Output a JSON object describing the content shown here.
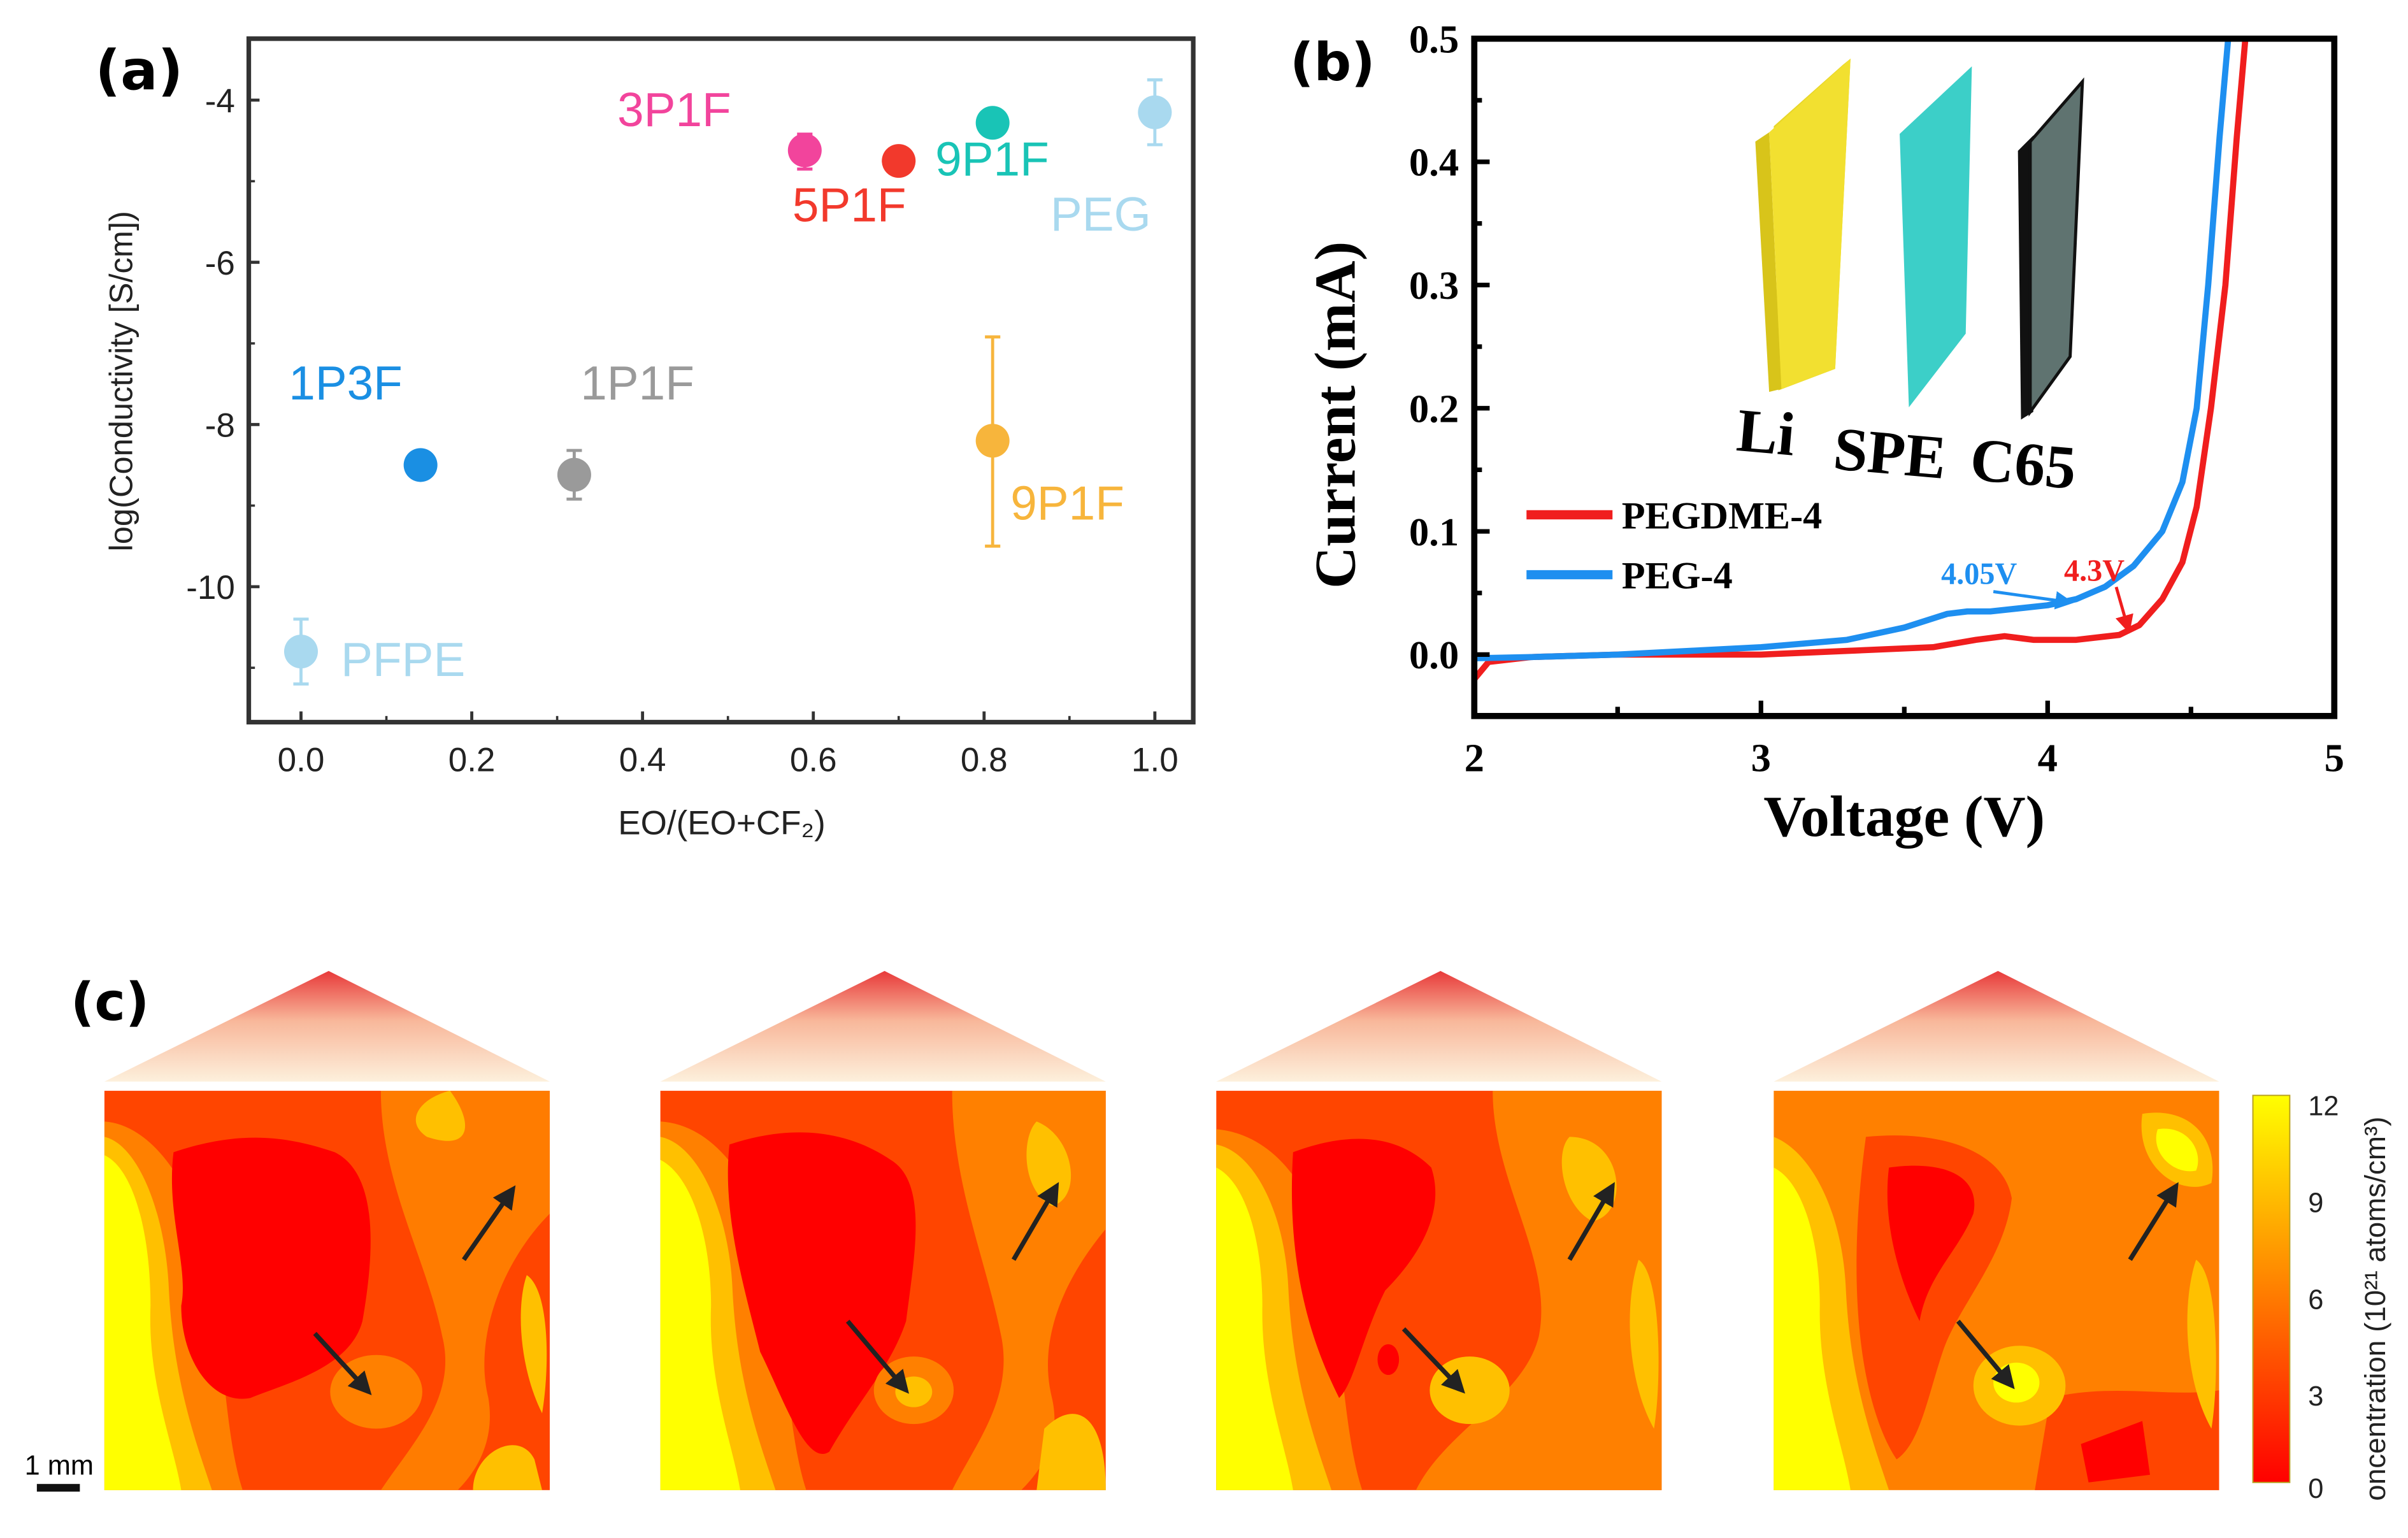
{
  "panel_labels": {
    "a": "(a)",
    "b": "(b)",
    "c": "(c)"
  },
  "chart_data": [
    {
      "type": "scatter",
      "panel": "(a)",
      "xlabel": "EO/(EO+CF₂)",
      "ylabel": "log(Conductivity [S/cm])",
      "xlim": [
        -0.05,
        1.05
      ],
      "ylim": [
        -11.7,
        -3.25
      ],
      "xticks": [
        "0.0",
        "0.2",
        "0.4",
        "0.6",
        "0.8",
        "1.0"
      ],
      "xtick_values": [
        0,
        0.2,
        0.4,
        0.6,
        0.8,
        1.0
      ],
      "yticks": [
        "-4",
        "-6",
        "-8",
        "-10"
      ],
      "ytick_values": [
        -4,
        -6,
        -8,
        -10
      ],
      "grid": false,
      "points": [
        {
          "label": "PFPE",
          "x": 0.0,
          "y": -10.8,
          "err_low": -11.2,
          "err_high": -10.4,
          "color": "#a9d9ef"
        },
        {
          "label": "1P3F",
          "x": 0.14,
          "y": -8.5,
          "err_low": -8.5,
          "err_high": -8.5,
          "color": "#1a8fe3"
        },
        {
          "label": "1P1F",
          "x": 0.32,
          "y": -8.62,
          "err_low": -8.92,
          "err_high": -8.32,
          "color": "#9a9a9a"
        },
        {
          "label": "3P1F",
          "x": 0.59,
          "y": -4.62,
          "err_low": -4.85,
          "err_high": -4.42,
          "color": "#f2449c"
        },
        {
          "label": "5P1F",
          "x": 0.7,
          "y": -4.75,
          "err_low": -4.75,
          "err_high": -4.75,
          "color": "#f2392c"
        },
        {
          "label": "9P1F",
          "x": 0.81,
          "y": -4.28,
          "err_low": -4.28,
          "err_high": -4.28,
          "color": "#19c4b6"
        },
        {
          "label": "9P1F",
          "x": 0.81,
          "y": -8.2,
          "err_low": -9.5,
          "err_high": -6.92,
          "color": "#f7b53c"
        },
        {
          "label": "PEG",
          "x": 1.0,
          "y": -4.15,
          "err_low": -4.55,
          "err_high": -3.75,
          "color": "#a9d9ef"
        }
      ]
    },
    {
      "type": "line",
      "panel": "(b)",
      "xlabel": "Voltage (V)",
      "ylabel": "Current (mA)",
      "xlim": [
        2,
        5
      ],
      "ylim": [
        -0.05,
        0.5
      ],
      "xticks": [
        "2",
        "3",
        "4",
        "5"
      ],
      "xtick_values": [
        2,
        3,
        4,
        5
      ],
      "yticks": [
        "0.0",
        "0.1",
        "0.2",
        "0.3",
        "0.4",
        "0.5"
      ],
      "ytick_values": [
        0,
        0.1,
        0.2,
        0.3,
        0.4,
        0.5
      ],
      "legend_position": "middle-left",
      "series": [
        {
          "name": "PEGDME-4",
          "color": "#f01e1e",
          "x": [
            2.0,
            2.05,
            2.2,
            2.5,
            3.0,
            3.4,
            3.6,
            3.75,
            3.85,
            3.95,
            4.1,
            4.25,
            4.32,
            4.4,
            4.47,
            4.52,
            4.57,
            4.62,
            4.66,
            4.69
          ],
          "y": [
            -0.02,
            -0.006,
            -0.002,
            0.0,
            0.0,
            0.004,
            0.006,
            0.012,
            0.015,
            0.012,
            0.012,
            0.016,
            0.024,
            0.045,
            0.075,
            0.12,
            0.2,
            0.3,
            0.42,
            0.5
          ]
        },
        {
          "name": "PEG-4",
          "color": "#1e8ff0",
          "x": [
            2.0,
            2.2,
            2.5,
            3.0,
            3.3,
            3.5,
            3.65,
            3.72,
            3.8,
            4.0,
            4.1,
            4.2,
            4.3,
            4.4,
            4.47,
            4.52,
            4.56,
            4.6,
            4.63
          ],
          "y": [
            -0.003,
            -0.002,
            0.0,
            0.006,
            0.012,
            0.022,
            0.033,
            0.035,
            0.035,
            0.04,
            0.045,
            0.055,
            0.072,
            0.1,
            0.14,
            0.2,
            0.3,
            0.42,
            0.5
          ]
        }
      ],
      "annotations": [
        {
          "text": "4.05V",
          "x": 4.05,
          "y": 0.045,
          "color": "#1e8ff0"
        },
        {
          "text": "4.3V",
          "x": 4.3,
          "y": 0.02,
          "color": "#f01e1e"
        }
      ],
      "inset_labels": [
        "Li",
        "SPE",
        "C65"
      ]
    },
    {
      "type": "heatmap",
      "panel": "(c)",
      "maps": 4,
      "colorbar": {
        "label": "oncentration (10²¹ atoms/cm³)",
        "ticks": [
          "12",
          "9",
          "6",
          "3",
          "0"
        ],
        "tick_values": [
          12,
          9,
          6,
          3,
          0
        ],
        "range": [
          0,
          12
        ],
        "colors": [
          "#ff0000",
          "#ff4500",
          "#ff8000",
          "#ffc000",
          "#ffff00"
        ]
      },
      "scale_bar": "1 mm"
    }
  ]
}
